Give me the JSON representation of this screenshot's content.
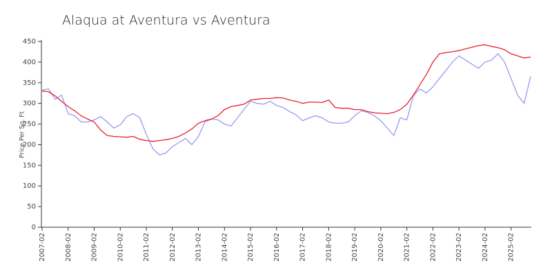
{
  "chart_data": {
    "type": "line",
    "title": "Alaqua at Aventura vs Aventura",
    "y_label": "Price Per Sq. Ft",
    "x": [
      "2007-02",
      "2007-05",
      "2007-08",
      "2007-11",
      "2008-02",
      "2008-05",
      "2008-08",
      "2008-11",
      "2009-02",
      "2009-05",
      "2009-08",
      "2009-11",
      "2010-02",
      "2010-05",
      "2010-08",
      "2010-11",
      "2011-02",
      "2011-05",
      "2011-08",
      "2011-11",
      "2012-02",
      "2012-05",
      "2012-08",
      "2012-11",
      "2013-02",
      "2013-05",
      "2013-08",
      "2013-11",
      "2014-02",
      "2014-05",
      "2014-08",
      "2014-11",
      "2015-02",
      "2015-05",
      "2015-08",
      "2015-11",
      "2016-02",
      "2016-05",
      "2016-08",
      "2016-11",
      "2017-02",
      "2017-05",
      "2017-08",
      "2017-11",
      "2018-02",
      "2018-05",
      "2018-08",
      "2018-11",
      "2019-02",
      "2019-05",
      "2019-08",
      "2019-11",
      "2020-02",
      "2020-05",
      "2020-08",
      "2020-11",
      "2021-02",
      "2021-05",
      "2021-08",
      "2021-11",
      "2022-02",
      "2022-05",
      "2022-08",
      "2022-11",
      "2023-02",
      "2023-05",
      "2023-08",
      "2023-11",
      "2024-02",
      "2024-05",
      "2024-08",
      "2024-11",
      "2025-02",
      "2025-05",
      "2025-08",
      "2025-11"
    ],
    "series": [
      {
        "color": "#e8202a",
        "values": [
          330,
          328,
          318,
          305,
          292,
          282,
          270,
          262,
          255,
          235,
          222,
          220,
          219,
          218,
          220,
          213,
          210,
          208,
          210,
          212,
          215,
          220,
          228,
          238,
          252,
          258,
          262,
          270,
          285,
          292,
          295,
          298,
          308,
          310,
          312,
          312,
          314,
          313,
          308,
          305,
          300,
          303,
          303,
          302,
          308,
          290,
          288,
          288,
          285,
          285,
          280,
          277,
          276,
          275,
          278,
          285,
          298,
          320,
          345,
          370,
          400,
          420,
          423,
          425,
          428,
          432,
          436,
          440,
          442,
          438,
          435,
          430,
          420,
          415,
          410,
          412
        ]
      },
      {
        "color": "#9999f0",
        "values": [
          332,
          335,
          310,
          320,
          275,
          270,
          255,
          255,
          260,
          268,
          255,
          240,
          248,
          268,
          275,
          265,
          225,
          190,
          175,
          180,
          195,
          205,
          215,
          200,
          220,
          255,
          262,
          260,
          250,
          245,
          265,
          285,
          305,
          300,
          298,
          305,
          295,
          290,
          280,
          272,
          258,
          265,
          270,
          265,
          255,
          252,
          252,
          255,
          270,
          282,
          278,
          270,
          258,
          240,
          222,
          265,
          260,
          318,
          335,
          325,
          340,
          360,
          380,
          400,
          415,
          405,
          395,
          385,
          400,
          405,
          420,
          400,
          360,
          320,
          300,
          365
        ]
      }
    ],
    "xlim": [
      "2007-02",
      "2025-11"
    ],
    "xticks": [
      "2007-02",
      "2008-02",
      "2009-02",
      "2010-02",
      "2011-02",
      "2012-02",
      "2013-02",
      "2014-02",
      "2015-02",
      "2016-02",
      "2017-02",
      "2018-02",
      "2019-02",
      "2020-02",
      "2021-02",
      "2022-02",
      "2023-02",
      "2024-02",
      "2025-02"
    ],
    "ylim": [
      0,
      450
    ],
    "yticks": [
      0,
      50,
      100,
      150,
      200,
      250,
      300,
      350,
      400,
      450
    ],
    "grid": false
  }
}
